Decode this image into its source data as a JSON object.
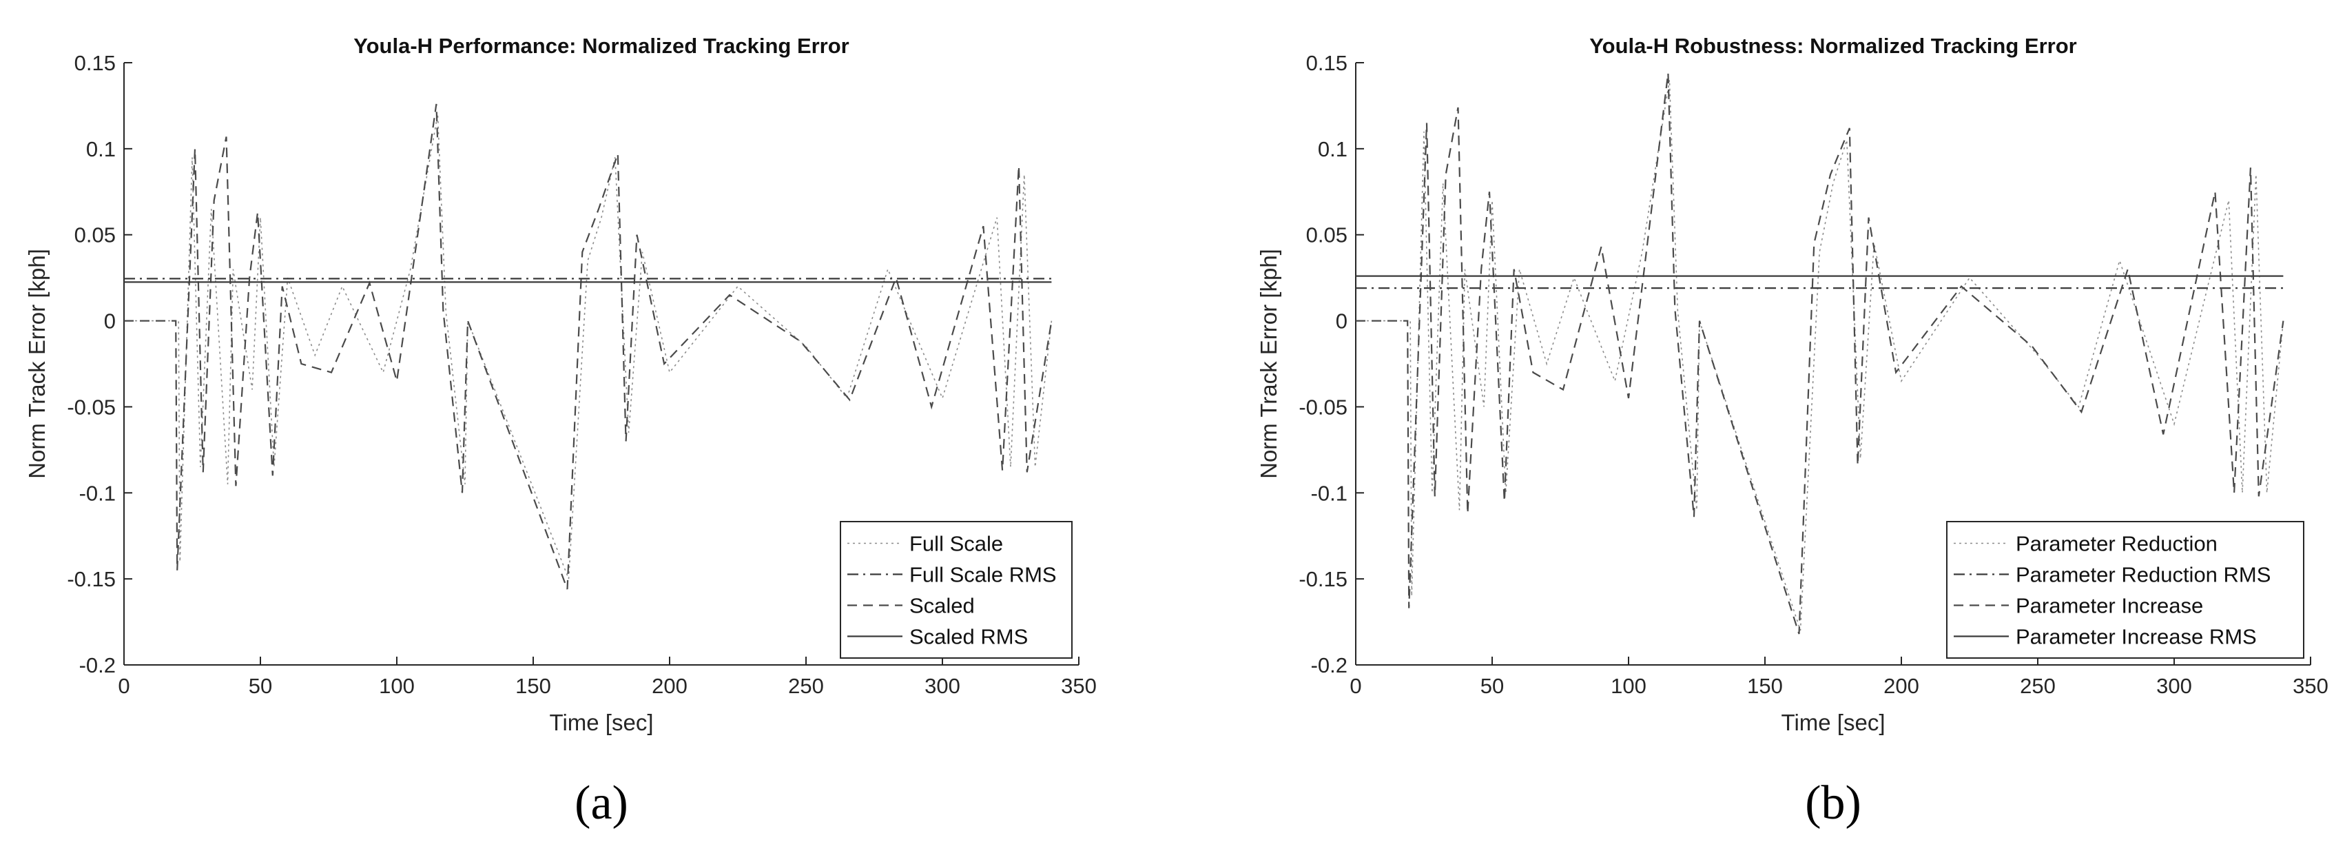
{
  "chart_data": [
    {
      "type": "line",
      "panel_label": "(a)",
      "title": "Youla-H Performance: Normalized Tracking Error",
      "xlabel": "Time [sec]",
      "ylabel": "Norm Track Error [kph]",
      "xlim": [
        0,
        350
      ],
      "ylim": [
        -0.2,
        0.15
      ],
      "xticks": [
        0,
        50,
        100,
        150,
        200,
        250,
        300,
        350
      ],
      "yticks": [
        -0.2,
        -0.15,
        -0.1,
        -0.05,
        0,
        0.05,
        0.1,
        0.15
      ],
      "xtick_labels": [
        "0",
        "50",
        "100",
        "150",
        "200",
        "250",
        "300",
        "350"
      ],
      "ytick_labels": [
        "-0.2",
        "-0.15",
        "-0.1",
        "-0.05",
        "0",
        "0.05",
        "0.1",
        "0.15"
      ],
      "grid": false,
      "legend_position": "bottom-right",
      "series": [
        {
          "name": "Full Scale",
          "style": "dotted",
          "color": "#8c8c8c",
          "x": [
            0,
            20,
            20.5,
            25,
            28,
            32,
            38,
            40,
            47,
            50,
            55,
            60,
            70,
            80,
            95,
            105,
            115,
            118,
            125,
            126,
            163,
            170,
            175,
            180,
            185,
            190,
            200,
            225,
            250,
            265,
            280,
            300,
            320,
            325,
            330,
            334,
            340
          ],
          "y": [
            0,
            0,
            -0.14,
            0.095,
            -0.085,
            0.065,
            -0.095,
            0.03,
            -0.04,
            0.06,
            -0.085,
            0.025,
            -0.02,
            0.02,
            -0.03,
            0.03,
            0.12,
            0.005,
            -0.095,
            0,
            -0.15,
            0.035,
            0.06,
            0.095,
            -0.065,
            0.04,
            -0.03,
            0.02,
            -0.015,
            -0.045,
            0.03,
            -0.045,
            0.06,
            -0.085,
            0.085,
            -0.085,
            0
          ]
        },
        {
          "name": "Full Scale RMS",
          "style": "dashdot",
          "color": "#3a3a3a",
          "x": [
            0,
            340
          ],
          "y": [
            0.0245,
            0.0245
          ]
        },
        {
          "name": "Scaled",
          "style": "dashed",
          "color": "#4a4a4a",
          "x": [
            0,
            19,
            19.5,
            26,
            29,
            33,
            37.5,
            41,
            46,
            49,
            54.5,
            58,
            65,
            76,
            90,
            100,
            114.5,
            117,
            124,
            126,
            162.5,
            168,
            174,
            181,
            184,
            188,
            198,
            222,
            248,
            266,
            283,
            296,
            315,
            322,
            328,
            331,
            340
          ],
          "y": [
            0,
            0,
            -0.145,
            0.1,
            -0.088,
            0.07,
            0.107,
            -0.096,
            0.025,
            0.063,
            -0.09,
            0.02,
            -0.025,
            -0.03,
            0.022,
            -0.035,
            0.126,
            0.006,
            -0.1,
            0,
            -0.156,
            0.04,
            0.065,
            0.097,
            -0.07,
            0.05,
            -0.025,
            0.015,
            -0.012,
            -0.046,
            0.025,
            -0.05,
            0.055,
            -0.087,
            0.09,
            -0.088,
            0
          ]
        },
        {
          "name": "Scaled RMS",
          "style": "solid",
          "color": "#3a3a3a",
          "x": [
            0,
            340
          ],
          "y": [
            0.0225,
            0.0225
          ]
        }
      ]
    },
    {
      "type": "line",
      "panel_label": "(b)",
      "title": "Youla-H Robustness: Normalized Tracking Error",
      "xlabel": "Time [sec]",
      "ylabel": "Norm Track Error [kph]",
      "xlim": [
        0,
        350
      ],
      "ylim": [
        -0.2,
        0.15
      ],
      "xticks": [
        0,
        50,
        100,
        150,
        200,
        250,
        300,
        350
      ],
      "yticks": [
        -0.2,
        -0.15,
        -0.1,
        -0.05,
        0,
        0.05,
        0.1,
        0.15
      ],
      "xtick_labels": [
        "0",
        "50",
        "100",
        "150",
        "200",
        "250",
        "300",
        "350"
      ],
      "ytick_labels": [
        "-0.2",
        "-0.15",
        "-0.1",
        "-0.05",
        "0",
        "0.05",
        "0.1",
        "0.15"
      ],
      "grid": false,
      "legend_position": "bottom-right",
      "series": [
        {
          "name": "Parameter Reduction",
          "style": "dotted",
          "color": "#8c8c8c",
          "x": [
            0,
            20,
            20.5,
            25,
            28,
            32,
            38,
            40,
            47,
            50,
            55,
            60,
            70,
            80,
            95,
            105,
            115,
            118,
            125,
            126,
            163,
            170,
            175,
            180,
            185,
            190,
            200,
            225,
            250,
            265,
            280,
            300,
            320,
            325,
            330,
            334,
            340
          ],
          "y": [
            0,
            0,
            -0.16,
            0.11,
            -0.1,
            0.08,
            -0.11,
            0.03,
            -0.05,
            0.07,
            -0.1,
            0.03,
            -0.025,
            0.025,
            -0.035,
            0.04,
            0.14,
            0.006,
            -0.11,
            0,
            -0.18,
            0.04,
            0.08,
            0.105,
            -0.08,
            0.045,
            -0.035,
            0.025,
            -0.02,
            -0.05,
            0.035,
            -0.06,
            0.07,
            -0.1,
            0.085,
            -0.1,
            0
          ]
        },
        {
          "name": "Parameter Reduction RMS",
          "style": "dashdot",
          "color": "#3a3a3a",
          "x": [
            0,
            340
          ],
          "y": [
            0.019,
            0.019
          ]
        },
        {
          "name": "Parameter Increase",
          "style": "dashed",
          "color": "#4a4a4a",
          "x": [
            0,
            19,
            19.5,
            26,
            29,
            33,
            37.5,
            41,
            46,
            49,
            54.5,
            58,
            65,
            76,
            90,
            100,
            114.5,
            117,
            124,
            126,
            162.5,
            168,
            174,
            181,
            184,
            188,
            198,
            222,
            248,
            266,
            283,
            296,
            315,
            322,
            328,
            331,
            340
          ],
          "y": [
            0,
            0,
            -0.167,
            0.115,
            -0.102,
            0.085,
            0.124,
            -0.112,
            0.03,
            0.075,
            -0.105,
            0.03,
            -0.03,
            -0.04,
            0.043,
            -0.045,
            0.144,
            0.007,
            -0.114,
            0,
            -0.182,
            0.045,
            0.085,
            0.112,
            -0.084,
            0.06,
            -0.03,
            0.02,
            -0.015,
            -0.053,
            0.03,
            -0.066,
            0.075,
            -0.1,
            0.089,
            -0.102,
            0
          ]
        },
        {
          "name": "Parameter Increase RMS",
          "style": "solid",
          "color": "#3a3a3a",
          "x": [
            0,
            340
          ],
          "y": [
            0.026,
            0.026
          ]
        }
      ]
    }
  ]
}
